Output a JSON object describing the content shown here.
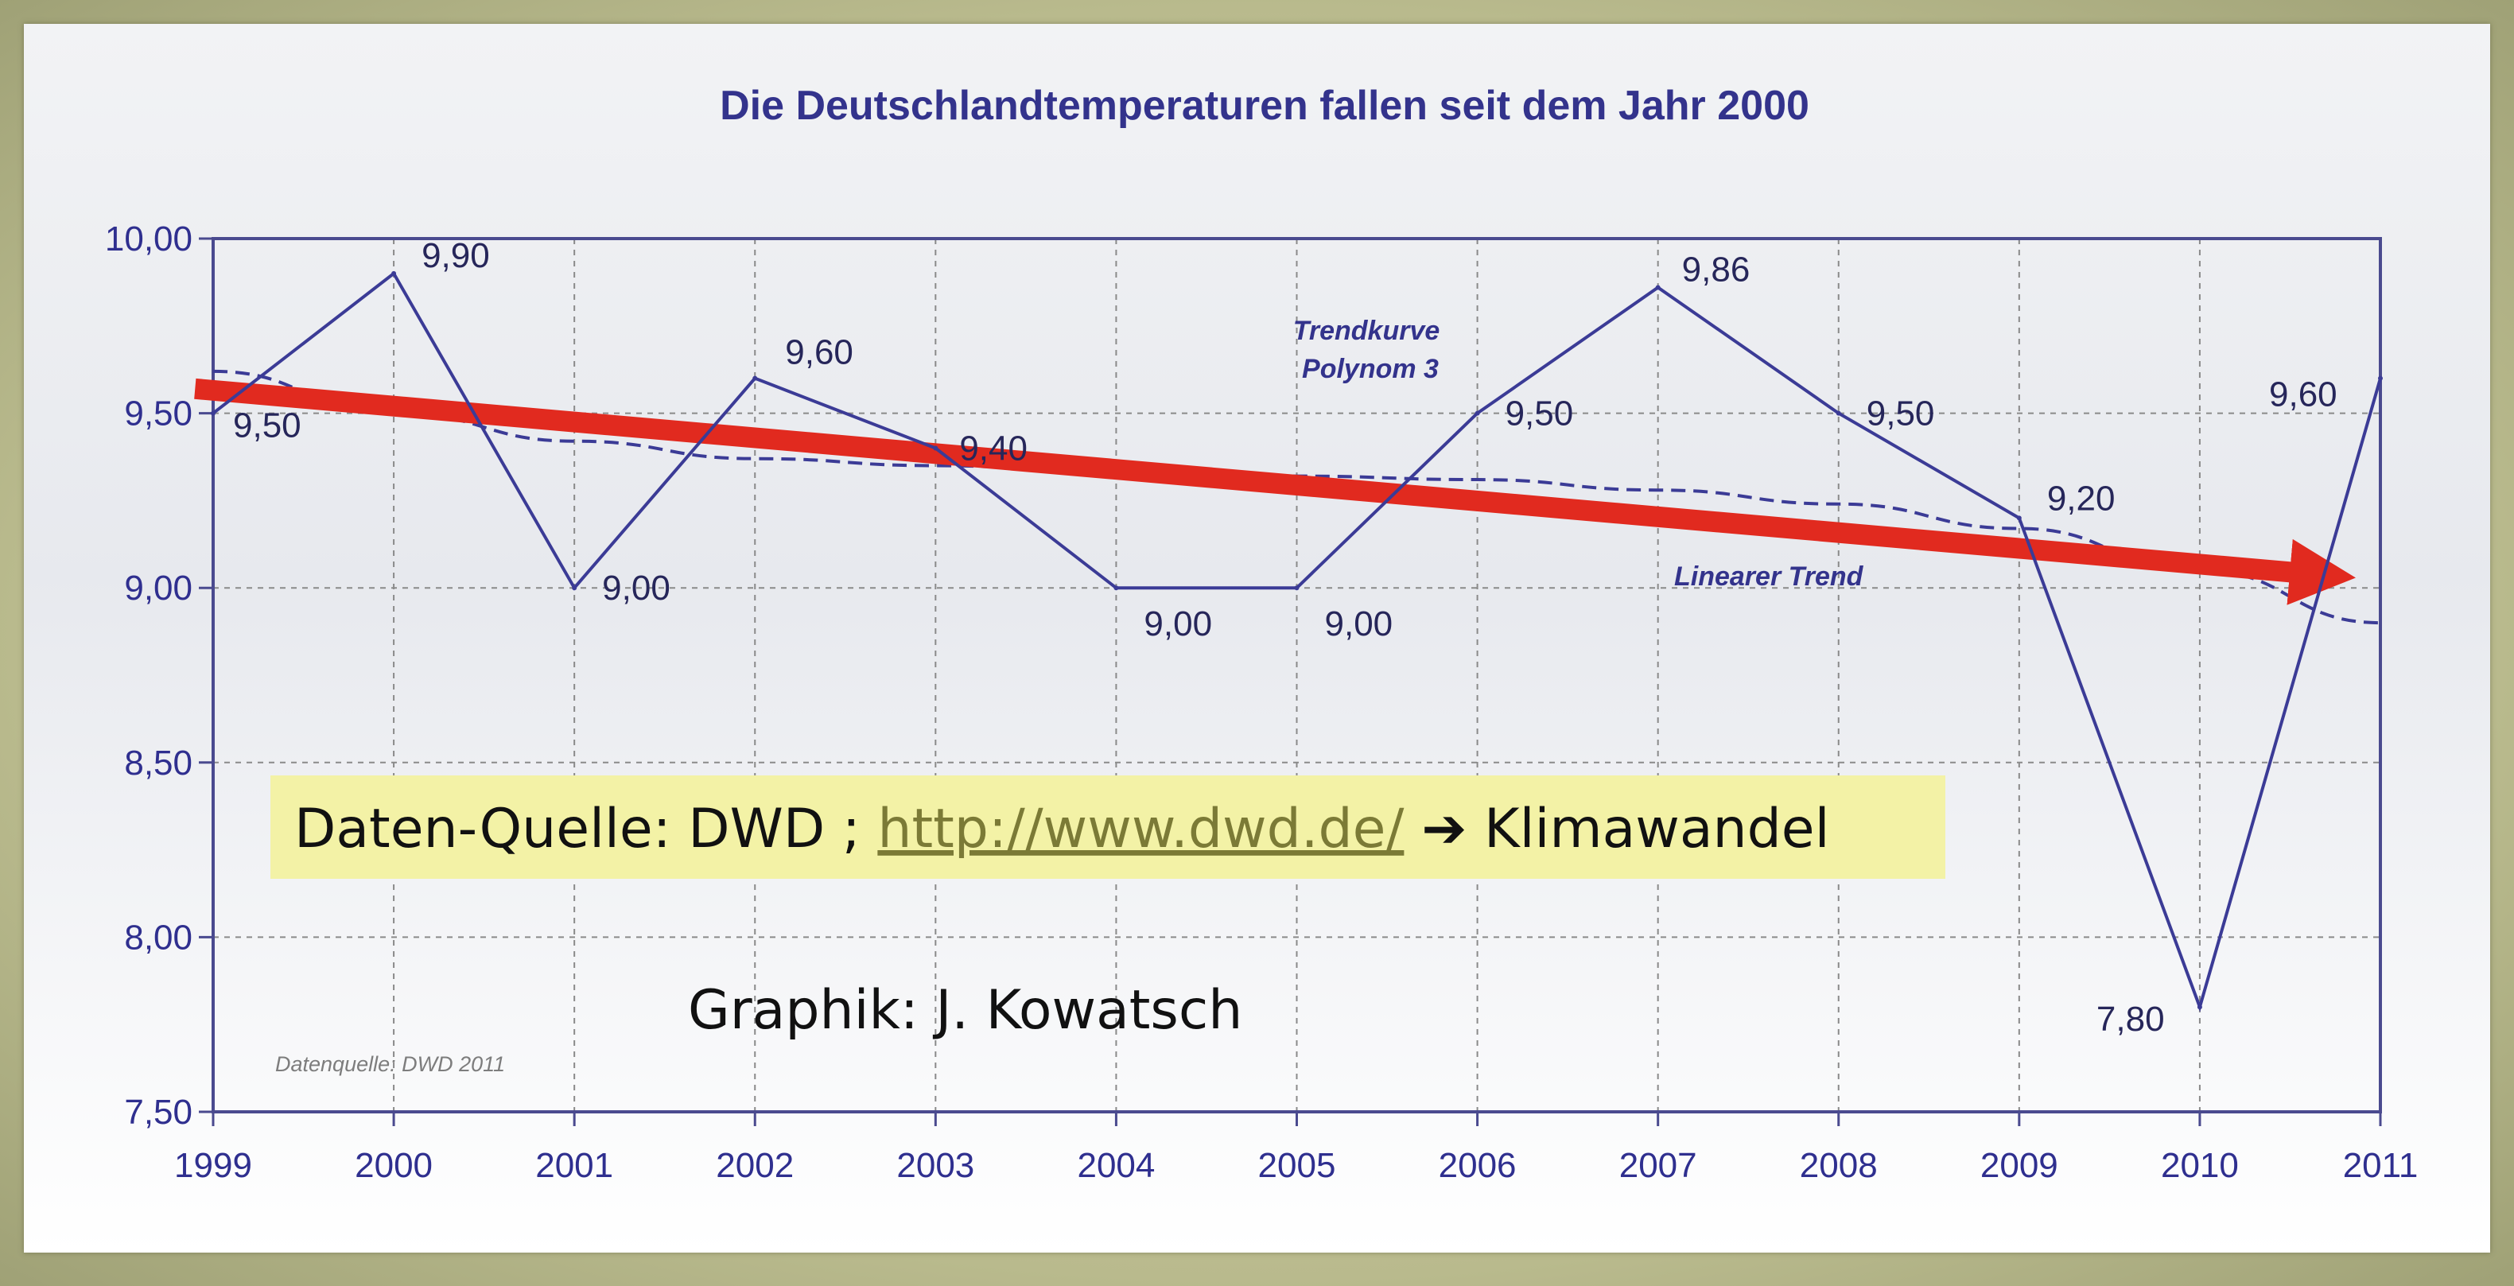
{
  "chart_data": {
    "type": "line",
    "title": "Die Deutschlandtemperaturen fallen seit dem Jahr 2000",
    "x": [
      1999,
      2000,
      2001,
      2002,
      2003,
      2004,
      2005,
      2006,
      2007,
      2008,
      2009,
      2010,
      2011
    ],
    "x_tick_labels": [
      "1999",
      "2000",
      "2001",
      "2002",
      "2003",
      "2004",
      "2005",
      "2006",
      "2007",
      "2008",
      "2009",
      "2010",
      "2011"
    ],
    "y_tick_labels": [
      "10,00",
      "9,50",
      "9,00",
      "8,50",
      "8,00",
      "7,50"
    ],
    "y_ticks": [
      10.0,
      9.5,
      9.0,
      8.5,
      8.0,
      7.5
    ],
    "ylim": [
      7.5,
      10.0
    ],
    "xlim": [
      1999,
      2011
    ],
    "grid": true,
    "series": [
      {
        "values": [
          9.5,
          9.9,
          9.0,
          9.6,
          9.4,
          9.0,
          9.0,
          9.5,
          9.86,
          9.5,
          9.2,
          7.8,
          9.6
        ],
        "value_labels": [
          "9,50",
          "9,90",
          "9,00",
          "9,60",
          "9,40",
          "9,00",
          "9,00",
          "9,50",
          "9,86",
          "9,50",
          "9,20",
          "7,80",
          "9,60"
        ],
        "color": "#3b3b96"
      },
      {
        "style": "dashed",
        "x": [
          1999,
          2000,
          2001,
          2002,
          2003,
          2004,
          2005,
          2006,
          2007,
          2008,
          2009,
          2010,
          2011
        ],
        "values": [
          9.62,
          9.5,
          9.42,
          9.37,
          9.35,
          9.33,
          9.32,
          9.31,
          9.28,
          9.24,
          9.17,
          9.05,
          8.9
        ],
        "color": "#3b3b96"
      }
    ],
    "arrow": {
      "x": [
        1998.9,
        2011
      ],
      "values": [
        9.57,
        9.03
      ],
      "color": "#e12a1f"
    },
    "annotations": {
      "trend_curve": [
        "Trendkurve",
        "Polynom 3"
      ],
      "linear_trend": "Linearer Trend",
      "source_small": "Datenquelle: DWD 2011",
      "source_box": {
        "prefix": "Daten-Quelle: DWD ; ",
        "link": "http://www.dwd.de/",
        "arrow": "➔",
        "suffix": " Klimawandel",
        "background": "#f3f2a6"
      },
      "credit": "Graphik: J. Kowatsch"
    }
  }
}
